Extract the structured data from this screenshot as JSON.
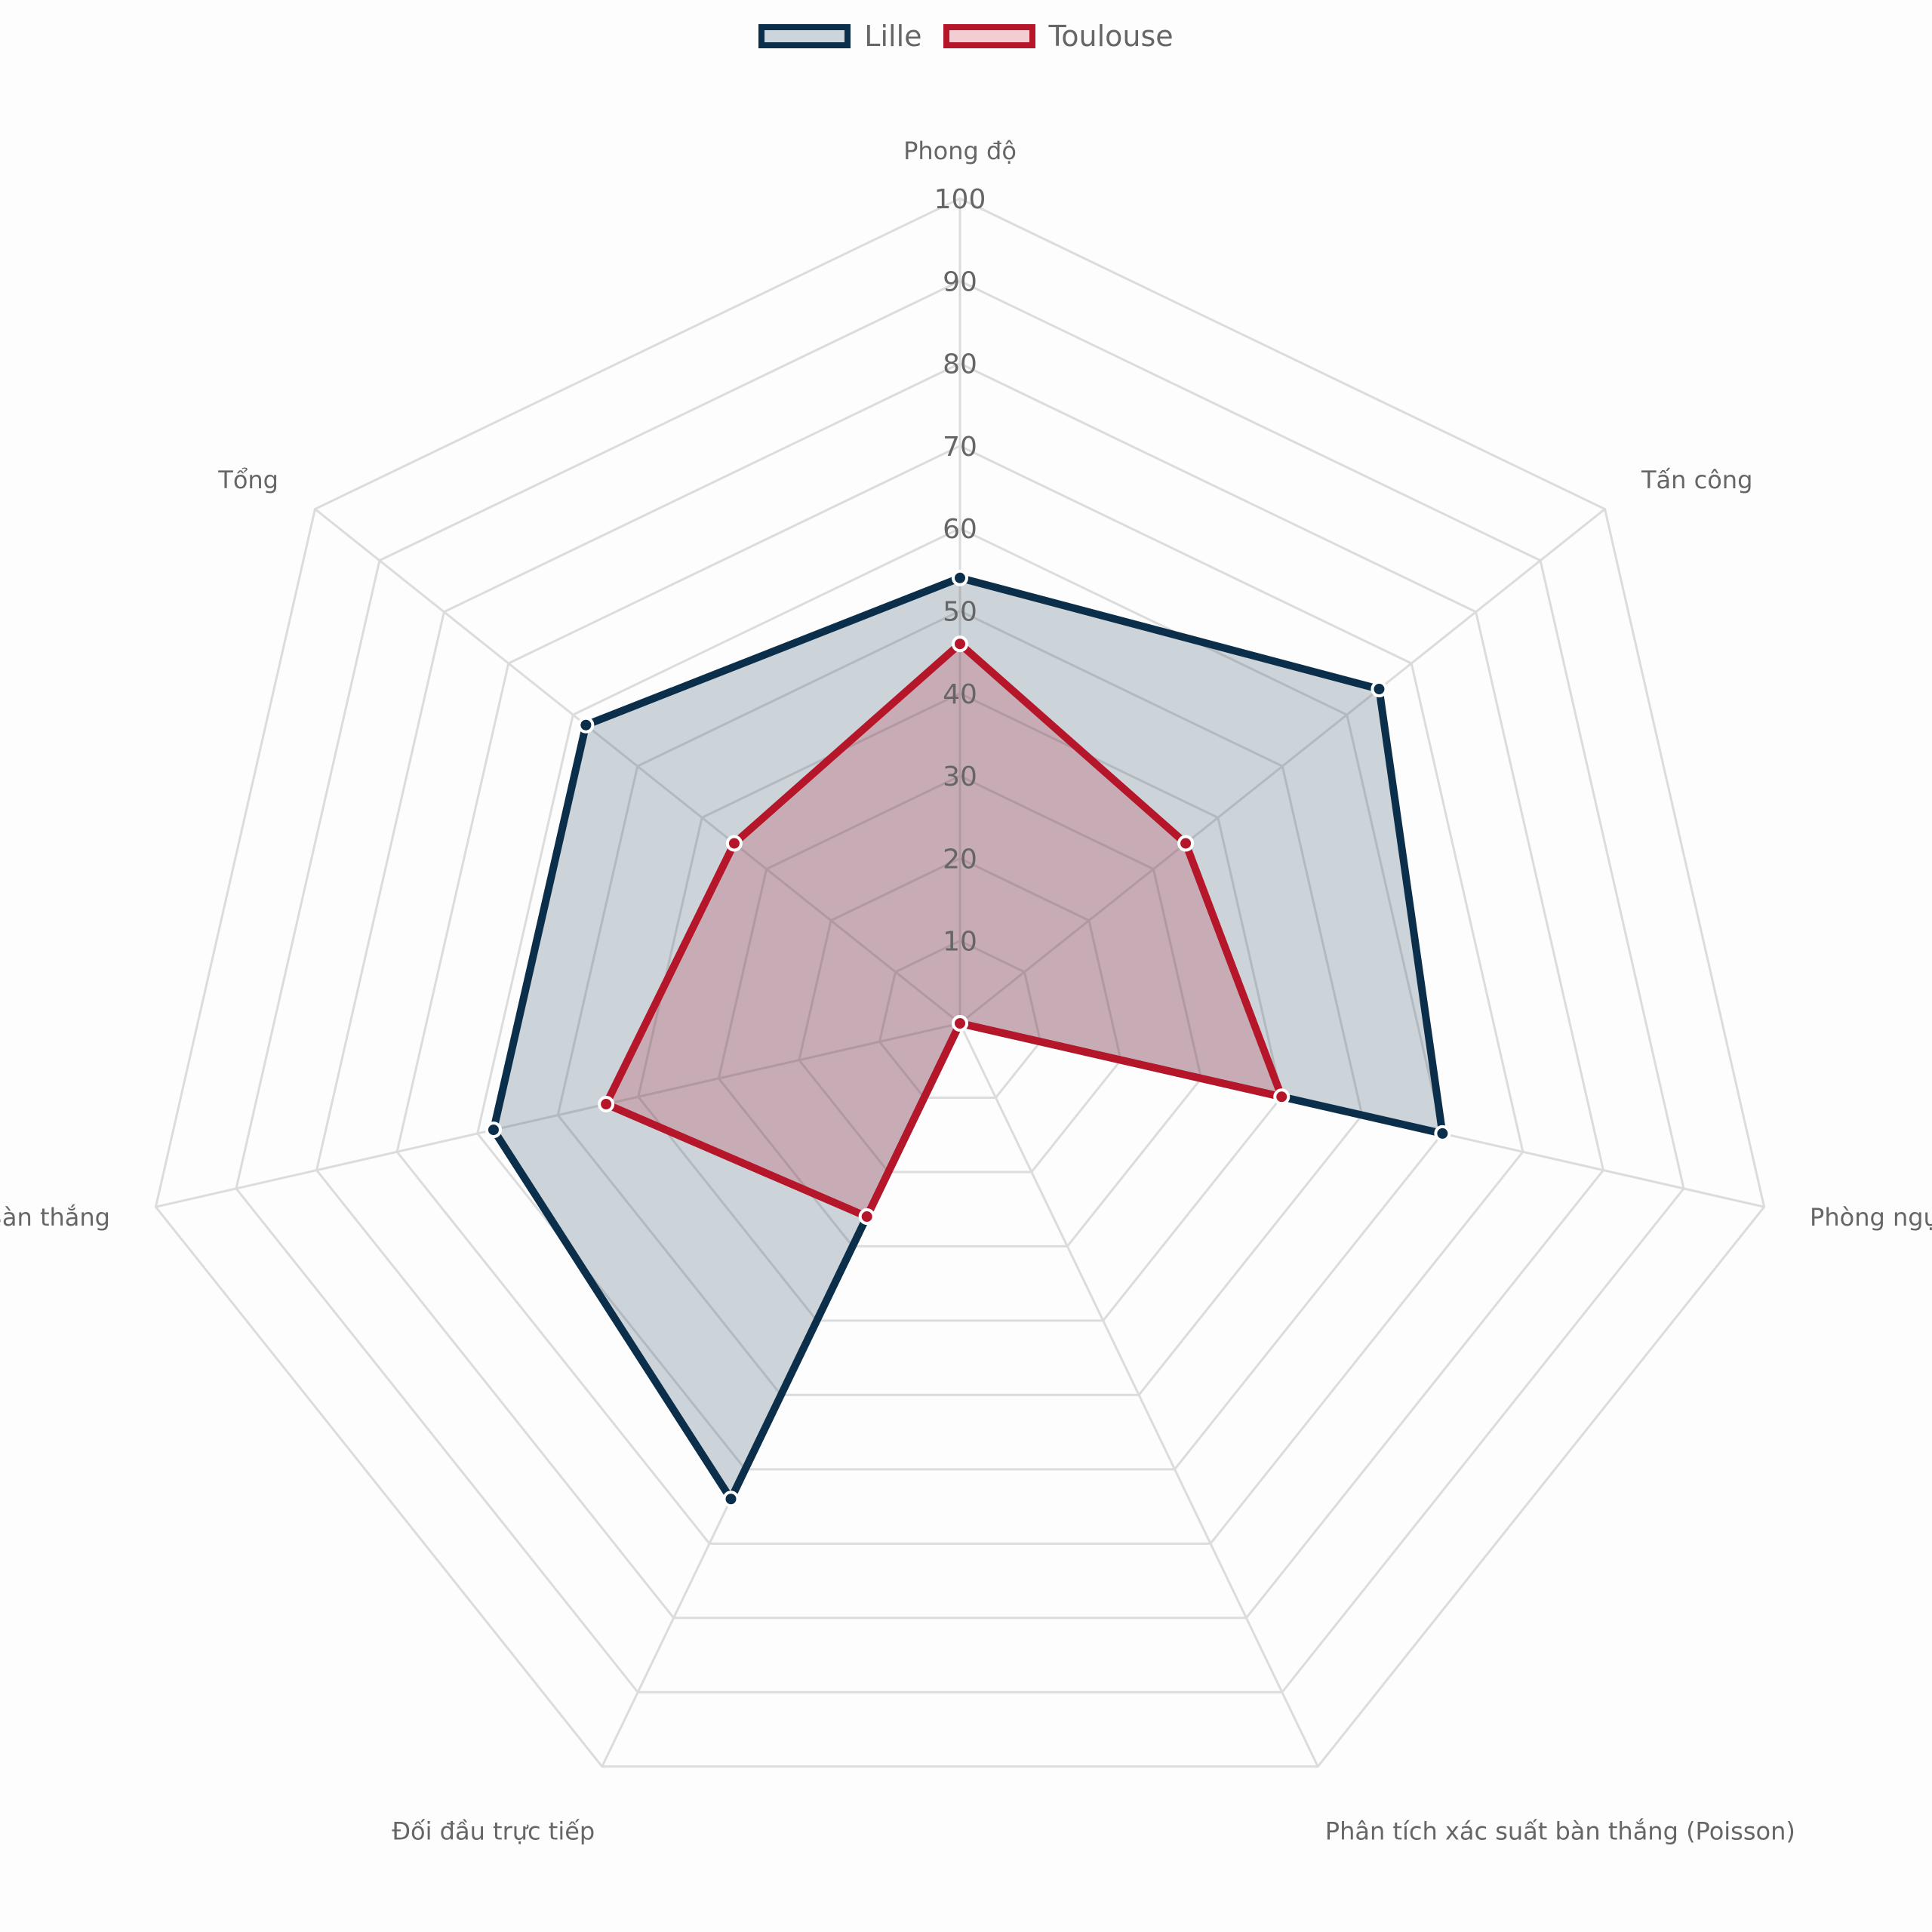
{
  "legend": [
    {
      "label": "Lille",
      "color": "#0b2f4b",
      "fill": "#ccd5dc"
    },
    {
      "label": "Toulouse",
      "color": "#b5162a",
      "fill": "#f3cdd1"
    }
  ],
  "chart_data": {
    "type": "radar",
    "axes": [
      "Phong độ",
      "Tấn công",
      "Phòng ngự",
      "Phân tích xác suất bàn thắng (Poisson)",
      "Đối đầu trực tiếp",
      "Bàn thắng",
      "Tổng"
    ],
    "r_range": [
      0,
      100
    ],
    "ticks": [
      "10",
      "20",
      "30",
      "40",
      "50",
      "60",
      "70",
      "80",
      "90",
      "100"
    ],
    "grid": true,
    "legend_position": "top-center",
    "series": [
      {
        "name": "Lille",
        "values": [
          54,
          65,
          60,
          0,
          64,
          58,
          58
        ],
        "color": "#0b2f4b"
      },
      {
        "name": "Toulouse",
        "values": [
          46,
          35,
          40,
          0,
          26,
          44,
          35
        ],
        "color": "#b5162a"
      }
    ]
  }
}
